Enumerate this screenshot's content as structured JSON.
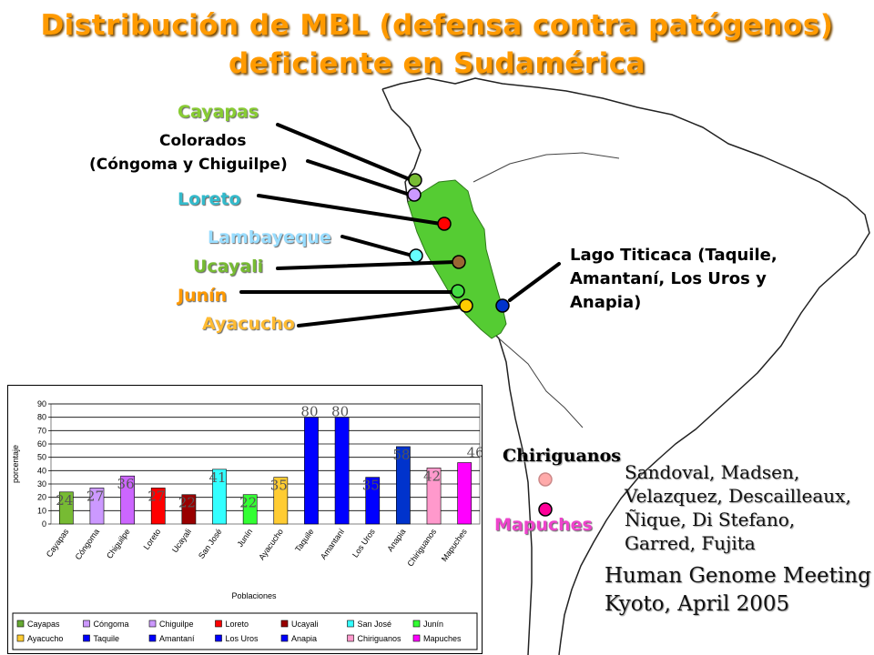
{
  "title": {
    "line1": "Distribución de MBL (defensa contra patógenos)",
    "line2": "deficiente en Sudamérica"
  },
  "colors": {
    "title": "#ff9a00",
    "peru": "#55cc33",
    "continent_outline": "#222222"
  },
  "map_labels": {
    "cayapas": "Cayapas",
    "colorados": "Colorados",
    "colorados_sub": "(Cóngoma y Chiguilpe)",
    "loreto": "Loreto",
    "lambayeque": "Lambayeque",
    "ucayali": "Ucayali",
    "junin": "Junín",
    "ayacucho": "Ayacucho",
    "chiriguanos": "Chiriguanos",
    "mapuches": "Mapuches",
    "titicaca": "Lago Titicaca (Taquile, Amantaní, Los Uros y Anapia)"
  },
  "markers": [
    {
      "name": "cayapas",
      "color": "#77bb33"
    },
    {
      "name": "colorados",
      "color": "#cc99ff"
    },
    {
      "name": "loreto",
      "color": "#ff0000"
    },
    {
      "name": "lambayeque",
      "color": "#66ffff"
    },
    {
      "name": "ucayali",
      "color": "#996633"
    },
    {
      "name": "junin",
      "color": "#44dd44"
    },
    {
      "name": "ayacucho",
      "color": "#ffcc00"
    },
    {
      "name": "titicaca",
      "color": "#0033cc"
    },
    {
      "name": "chiriguanos",
      "color": "#ffaaaa"
    },
    {
      "name": "mapuches",
      "color": "#ff0099"
    }
  ],
  "credits": {
    "authors": "Sandoval, Madsen, Velazquez, Descailleaux, Ñique, Di Stefano, Garred, Fujita",
    "meeting": "Human Genome Meeting Kyoto, April 2005"
  },
  "chart_data": {
    "type": "bar",
    "categories": [
      "Cayapas",
      "Cóngoma",
      "Chiguilpe",
      "Loreto",
      "Ucayali",
      "San José",
      "Junín",
      "Ayacucho",
      "Taquile",
      "Amantaní",
      "Los Uros",
      "Anapia",
      "Chiriguanos",
      "Mapuches"
    ],
    "values": [
      24,
      27,
      36,
      27,
      22,
      41,
      22,
      35,
      80,
      80,
      35,
      58,
      42,
      46
    ],
    "colors": [
      "#77bb33",
      "#cc99ff",
      "#cc66ff",
      "#ff0000",
      "#990000",
      "#33ffff",
      "#33ff33",
      "#ffcc33",
      "#0000ff",
      "#0000ff",
      "#0000ff",
      "#0033cc",
      "#ff99cc",
      "#ff00ff"
    ],
    "xlabel": "Poblaciones",
    "ylabel": "porcentaje",
    "ylim": [
      0,
      90
    ],
    "yticks": [
      0,
      10,
      20,
      30,
      40,
      50,
      60,
      70,
      80,
      90
    ],
    "grid": true,
    "legend": {
      "placement": "bottom",
      "entries": [
        "Cayapas",
        "Cóngoma",
        "Chiguilpe",
        "Loreto",
        "Ucayali",
        "San José",
        "Junín",
        "Ayacucho",
        "Taquile",
        "Amantaní",
        "Los Uros",
        "Anapia",
        "Chiriguanos",
        "Mapuches"
      ],
      "colors": [
        "#66aa33",
        "#cc99ff",
        "#cc99ff",
        "#ff0000",
        "#990000",
        "#33ffff",
        "#33ff33",
        "#ffcc33",
        "#0000ff",
        "#0000ff",
        "#0000ff",
        "#0000ff",
        "#ff99cc",
        "#ff00ff"
      ]
    }
  }
}
